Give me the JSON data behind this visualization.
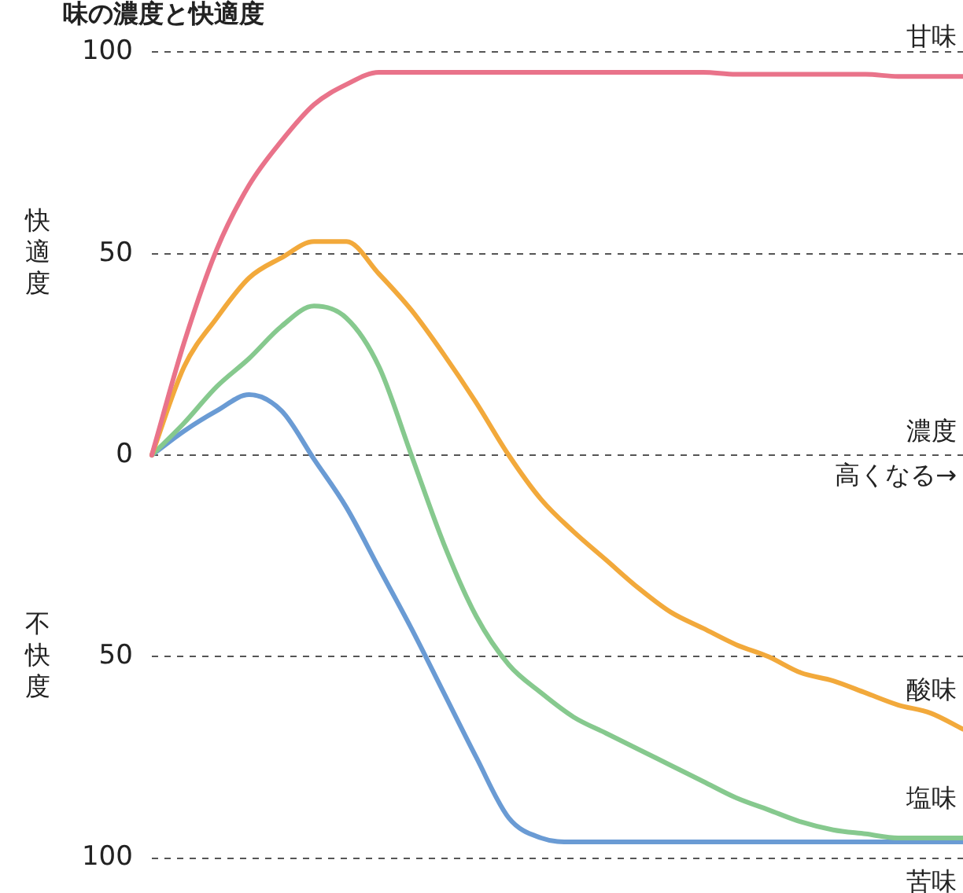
{
  "chart_data": {
    "type": "line",
    "title": "味の濃度と快適度",
    "xlabel": "濃度",
    "ylabel": "快適度",
    "annotations": [
      "高くなる→",
      "不快度"
    ],
    "categories": [
      null,
      null,
      null,
      null,
      null,
      null,
      null,
      null,
      null,
      null,
      null,
      null,
      null,
      null,
      null,
      null,
      null,
      null,
      null,
      null,
      null,
      null,
      null,
      null,
      null,
      null
    ],
    "series": [
      {
        "name": "甘味",
        "color": "#e9738a",
        "values": [
          0,
          28,
          51,
          67,
          78,
          87,
          92,
          95,
          95,
          95,
          95,
          95,
          95,
          95,
          95,
          95,
          95,
          95,
          94.5,
          94.5,
          94.5,
          94.5,
          94.5,
          94,
          94,
          94
        ]
      },
      {
        "name": "酸味",
        "color": "#f2a93b",
        "values": [
          0,
          22,
          34,
          44,
          49,
          53,
          53,
          45,
          36,
          25,
          13,
          0,
          -11,
          -19,
          -26,
          -33,
          -39,
          -43,
          -47,
          -50,
          -54,
          -56,
          -59,
          -62,
          -64,
          -68
        ]
      },
      {
        "name": "塩味",
        "color": "#86c98e",
        "values": [
          0,
          8,
          17,
          24,
          32,
          37,
          34,
          22,
          0,
          -22,
          -40,
          -52,
          -59,
          -65,
          -69,
          -73,
          -77,
          -81,
          -85,
          -88,
          -91,
          -93,
          -94,
          -95,
          -95,
          -95
        ]
      },
      {
        "name": "苦味",
        "color": "#6a9bd4",
        "values": [
          0,
          6,
          11,
          15,
          11,
          -1,
          -13,
          -28,
          -43,
          -59,
          -75,
          -90,
          -95,
          -96,
          -96,
          -96,
          -96,
          -96,
          -96,
          -96,
          -96,
          -96,
          -96,
          -96,
          -96,
          -96
        ]
      }
    ],
    "ylim": [
      -100,
      100
    ],
    "yticks": [
      {
        "value": -100,
        "label": "100"
      },
      {
        "value": -50,
        "label": "50"
      },
      0,
      50,
      100
    ],
    "grid": "y",
    "legend": false,
    "marker": "none",
    "line_style": "solid",
    "tick_labels": "y"
  }
}
